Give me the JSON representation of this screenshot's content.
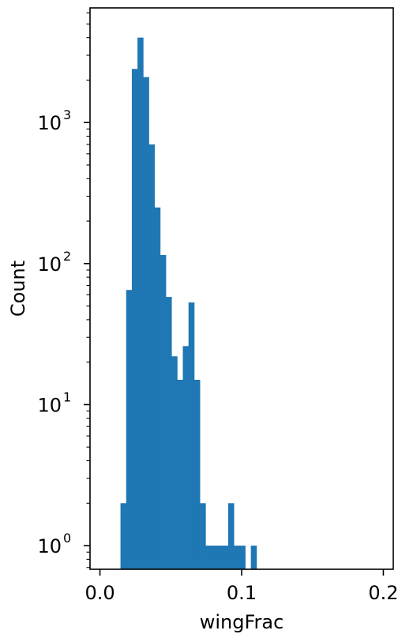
{
  "chart_data": {
    "type": "bar",
    "title": "",
    "xlabel": "wingFrac",
    "ylabel": "Count",
    "yscale": "log",
    "xlim": [
      -0.007,
      0.207
    ],
    "ylim": [
      0.68,
      6500
    ],
    "x_ticks": [
      {
        "value": 0.0,
        "label": "0.0"
      },
      {
        "value": 0.1,
        "label": "0.1"
      },
      {
        "value": 0.2,
        "label": "0.2"
      }
    ],
    "y_ticks": [
      {
        "value": 1,
        "base": "10",
        "exp": "0"
      },
      {
        "value": 10,
        "base": "10",
        "exp": "1"
      },
      {
        "value": 100,
        "base": "10",
        "exp": "2"
      },
      {
        "value": 1000,
        "base": "10",
        "exp": "3"
      }
    ],
    "bin_width": 0.004,
    "bins": [
      {
        "x0": 0.0145,
        "count": 2
      },
      {
        "x0": 0.0185,
        "count": 65
      },
      {
        "x0": 0.0225,
        "count": 2400
      },
      {
        "x0": 0.0265,
        "count": 4000
      },
      {
        "x0": 0.0305,
        "count": 2100
      },
      {
        "x0": 0.0345,
        "count": 700
      },
      {
        "x0": 0.0385,
        "count": 250
      },
      {
        "x0": 0.0425,
        "count": 115
      },
      {
        "x0": 0.0465,
        "count": 58
      },
      {
        "x0": 0.0505,
        "count": 22
      },
      {
        "x0": 0.0545,
        "count": 15
      },
      {
        "x0": 0.0585,
        "count": 26
      },
      {
        "x0": 0.0625,
        "count": 53
      },
      {
        "x0": 0.0665,
        "count": 15
      },
      {
        "x0": 0.0705,
        "count": 2
      },
      {
        "x0": 0.0745,
        "count": 1
      },
      {
        "x0": 0.0785,
        "count": 1
      },
      {
        "x0": 0.0825,
        "count": 1
      },
      {
        "x0": 0.0865,
        "count": 1
      },
      {
        "x0": 0.0905,
        "count": 2
      },
      {
        "x0": 0.0945,
        "count": 1
      },
      {
        "x0": 0.0985,
        "count": 1
      },
      {
        "x0": 0.1065,
        "count": 1
      }
    ],
    "bar_color": "#1f77b4",
    "grid": false
  }
}
